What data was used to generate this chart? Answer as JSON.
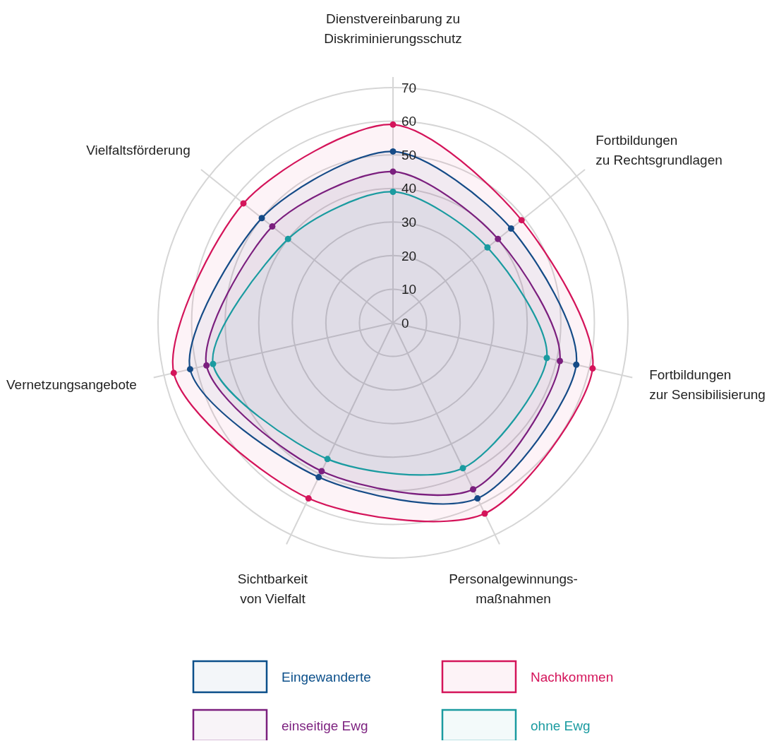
{
  "chart_data": {
    "type": "radar",
    "categories": [
      "Dienstvereinbarung zu\nDiskriminierungsschutz",
      "Fortbildungen\nzu Rechtsgrundlagen",
      "Fortbildungen\nzur Sensibilisierung",
      "Personalgewinnungs-\nmaßnahmen",
      "Sichtbarkeit\nvon Vielfalt",
      "Vernetzungsangebote",
      "Vielfaltsförderung"
    ],
    "series": [
      {
        "name": "Eingewanderte",
        "color": "#0b4f8a",
        "values": [
          51,
          45,
          56,
          58,
          51,
          62,
          50
        ]
      },
      {
        "name": "Nachkommen",
        "color": "#d4145a",
        "values": [
          59,
          49,
          61,
          63,
          58,
          67,
          57
        ]
      },
      {
        "name": "einseitige Ewg",
        "color": "#7b1f7e",
        "values": [
          45,
          40,
          51,
          55,
          49,
          57,
          46
        ]
      },
      {
        "name": "ohne Ewg",
        "color": "#1a9ba0",
        "values": [
          39,
          36,
          47,
          48,
          45,
          55,
          40
        ]
      }
    ],
    "ylim": [
      0,
      70
    ],
    "yticks": [
      0,
      10,
      20,
      30,
      40,
      50,
      60,
      70
    ],
    "grid": true,
    "legend": "bottom",
    "marker": "circle"
  }
}
